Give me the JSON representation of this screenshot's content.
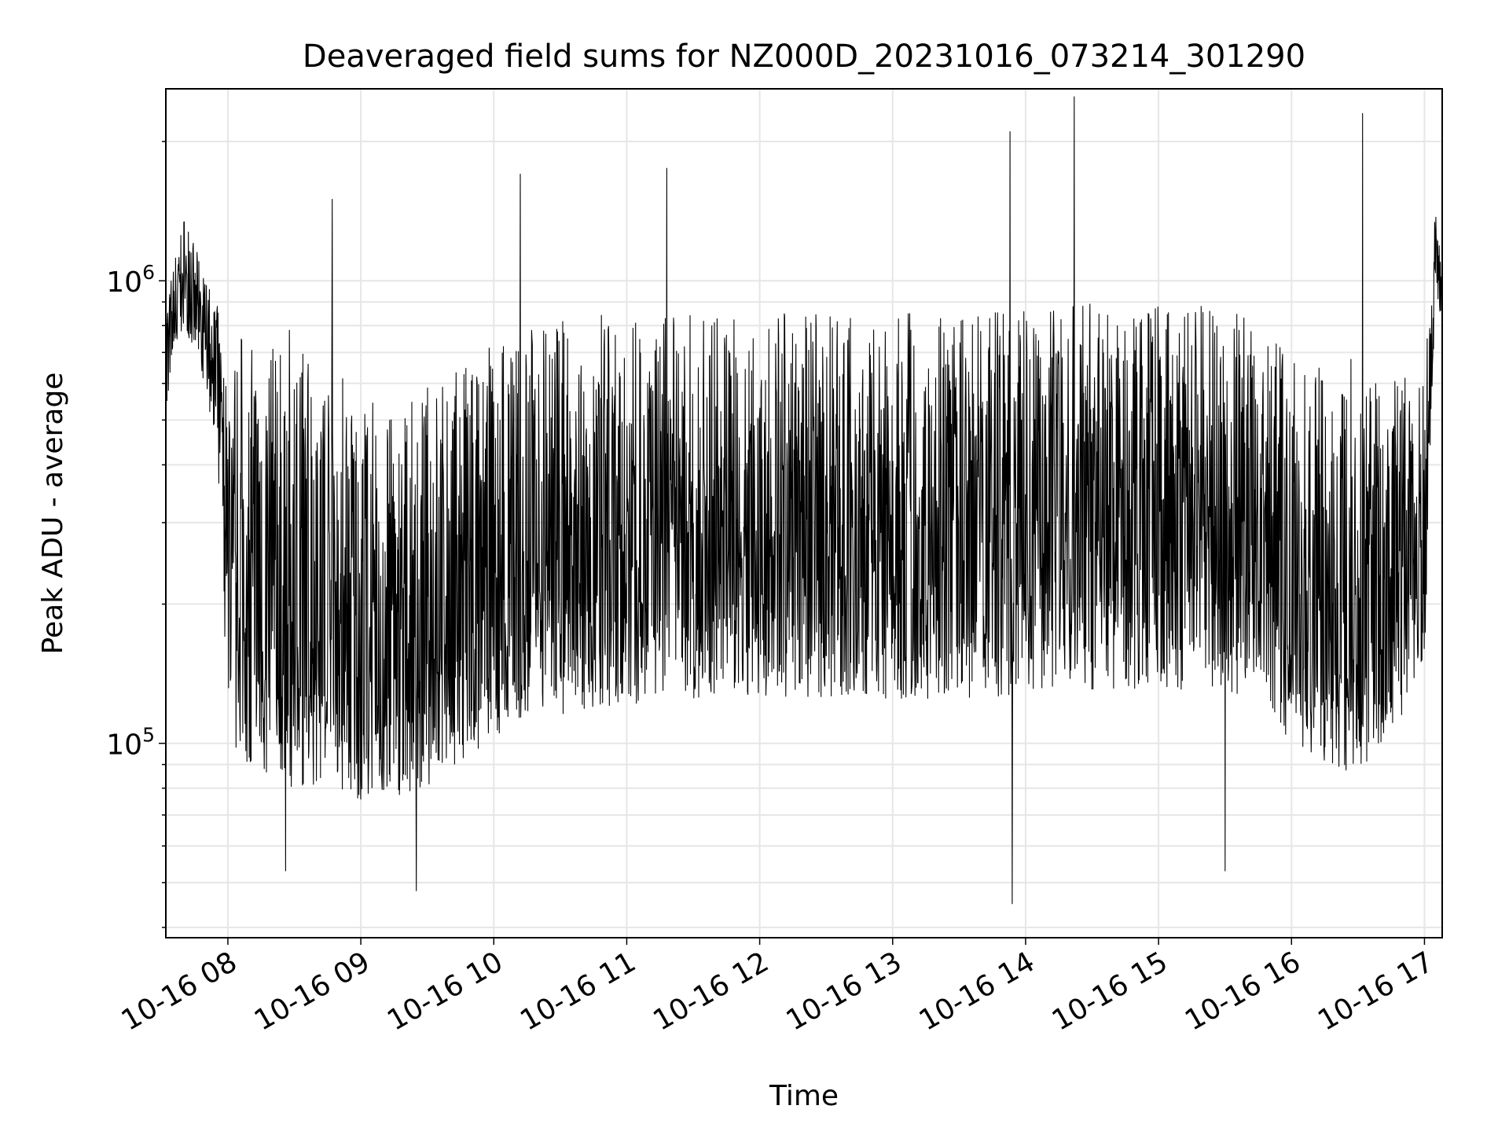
{
  "chart_data": {
    "type": "line",
    "title": "Deaveraged field sums for NZ000D_20231016_073214_301290",
    "xlabel": "Time",
    "ylabel": "Peak ADU - average",
    "yscale": "log",
    "xlim": [
      "2023-10-16 07:32",
      "2023-10-16 17:08"
    ],
    "ylim": [
      38000,
      2600000
    ],
    "grid": true,
    "line_color": "#000000",
    "x_ticks": [
      "10-16 08",
      "10-16 09",
      "10-16 10",
      "10-16 11",
      "10-16 12",
      "10-16 13",
      "10-16 14",
      "10-16 15",
      "10-16 16",
      "10-16 17"
    ],
    "y_ticks": [
      {
        "base": "10",
        "exp": "5"
      },
      {
        "base": "10",
        "exp": "6"
      }
    ],
    "series": [
      {
        "x": [
          "07:32",
          "07:40",
          "07:45",
          "07:50",
          "07:55",
          "08:00",
          "08:05",
          "08:15",
          "08:30",
          "08:45",
          "09:00",
          "09:15",
          "09:30",
          "09:45",
          "10:00",
          "10:15",
          "10:30",
          "10:45",
          "11:00",
          "11:15",
          "11:30",
          "11:45",
          "12:00",
          "12:15",
          "12:30",
          "12:45",
          "13:00",
          "13:15",
          "13:30",
          "13:45",
          "14:00",
          "14:15",
          "14:30",
          "14:45",
          "15:00",
          "15:15",
          "15:30",
          "15:45",
          "16:00",
          "16:15",
          "16:30",
          "16:45",
          "17:00",
          "17:05",
          "17:08"
        ],
        "values": [
          700000,
          1000000,
          900000,
          750000,
          650000,
          250000,
          200000,
          170000,
          160000,
          180000,
          170000,
          160000,
          170000,
          190000,
          210000,
          230000,
          240000,
          250000,
          260000,
          270000,
          270000,
          275000,
          280000,
          280000,
          280000,
          285000,
          285000,
          290000,
          290000,
          295000,
          300000,
          300000,
          300000,
          300000,
          300000,
          300000,
          300000,
          290000,
          220000,
          200000,
          190000,
          230000,
          320000,
          1300000,
          800000
        ],
        "spread_low": [
          500000,
          800000,
          700000,
          550000,
          450000,
          110000,
          90000,
          80000,
          80000,
          80000,
          75000,
          75000,
          80000,
          90000,
          100000,
          110000,
          115000,
          120000,
          120000,
          125000,
          125000,
          125000,
          125000,
          125000,
          125000,
          125000,
          125000,
          125000,
          125000,
          125000,
          130000,
          130000,
          130000,
          130000,
          130000,
          130000,
          130000,
          125000,
          100000,
          90000,
          85000,
          100000,
          150000,
          1000000,
          700000
        ],
        "spread_high": [
          900000,
          1400000,
          1200000,
          1000000,
          900000,
          600000,
          800000,
          700000,
          800000,
          700000,
          600000,
          500000,
          600000,
          650000,
          750000,
          800000,
          850000,
          850000,
          850000,
          850000,
          850000,
          850000,
          850000,
          850000,
          850000,
          850000,
          850000,
          850000,
          850000,
          850000,
          900000,
          900000,
          900000,
          900000,
          900000,
          900000,
          900000,
          850000,
          700000,
          650000,
          700000,
          650000,
          600000,
          1500000,
          1000000
        ],
        "spikes_high": [
          [
            "08:47",
            1500000
          ],
          [
            "10:12",
            1700000
          ],
          [
            "11:18",
            1750000
          ],
          [
            "13:53",
            2100000
          ],
          [
            "14:22",
            2500000
          ],
          [
            "16:32",
            2300000
          ]
        ],
        "spikes_low": [
          [
            "08:26",
            53000
          ],
          [
            "09:25",
            48000
          ],
          [
            "13:54",
            45000
          ],
          [
            "15:30",
            53000
          ]
        ]
      }
    ]
  }
}
